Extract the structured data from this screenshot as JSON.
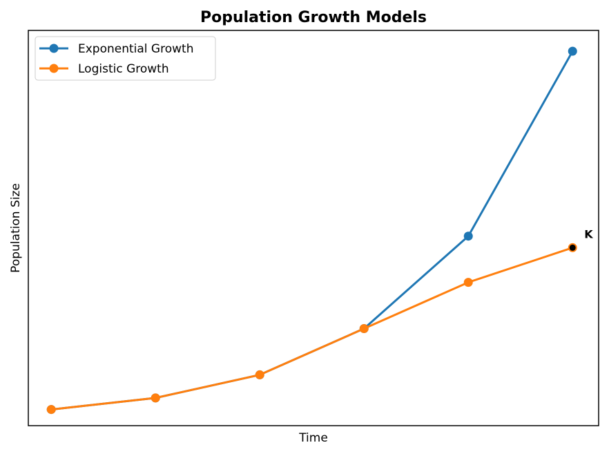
{
  "chart_data": {
    "type": "line",
    "title": "Population Growth Models",
    "xlabel": "Time",
    "ylabel": "Population Size",
    "x": [
      0,
      1,
      2,
      3,
      4,
      5
    ],
    "xlim": [
      -0.22,
      5.25
    ],
    "ylim": [
      0.65,
      9.2
    ],
    "grid": false,
    "legend_position": "top-left",
    "series": [
      {
        "name": "Exponential Growth",
        "color": "#1f77b4",
        "values": [
          1,
          1.25,
          1.75,
          2.75,
          4.75,
          8.75
        ]
      },
      {
        "name": "Logistic Growth",
        "color": "#ff7f0e",
        "values": [
          1,
          1.25,
          1.75,
          2.75,
          3.75,
          4.5
        ]
      }
    ],
    "annotations": [
      {
        "text": "K",
        "x": 5,
        "y": 4.5
      }
    ]
  }
}
